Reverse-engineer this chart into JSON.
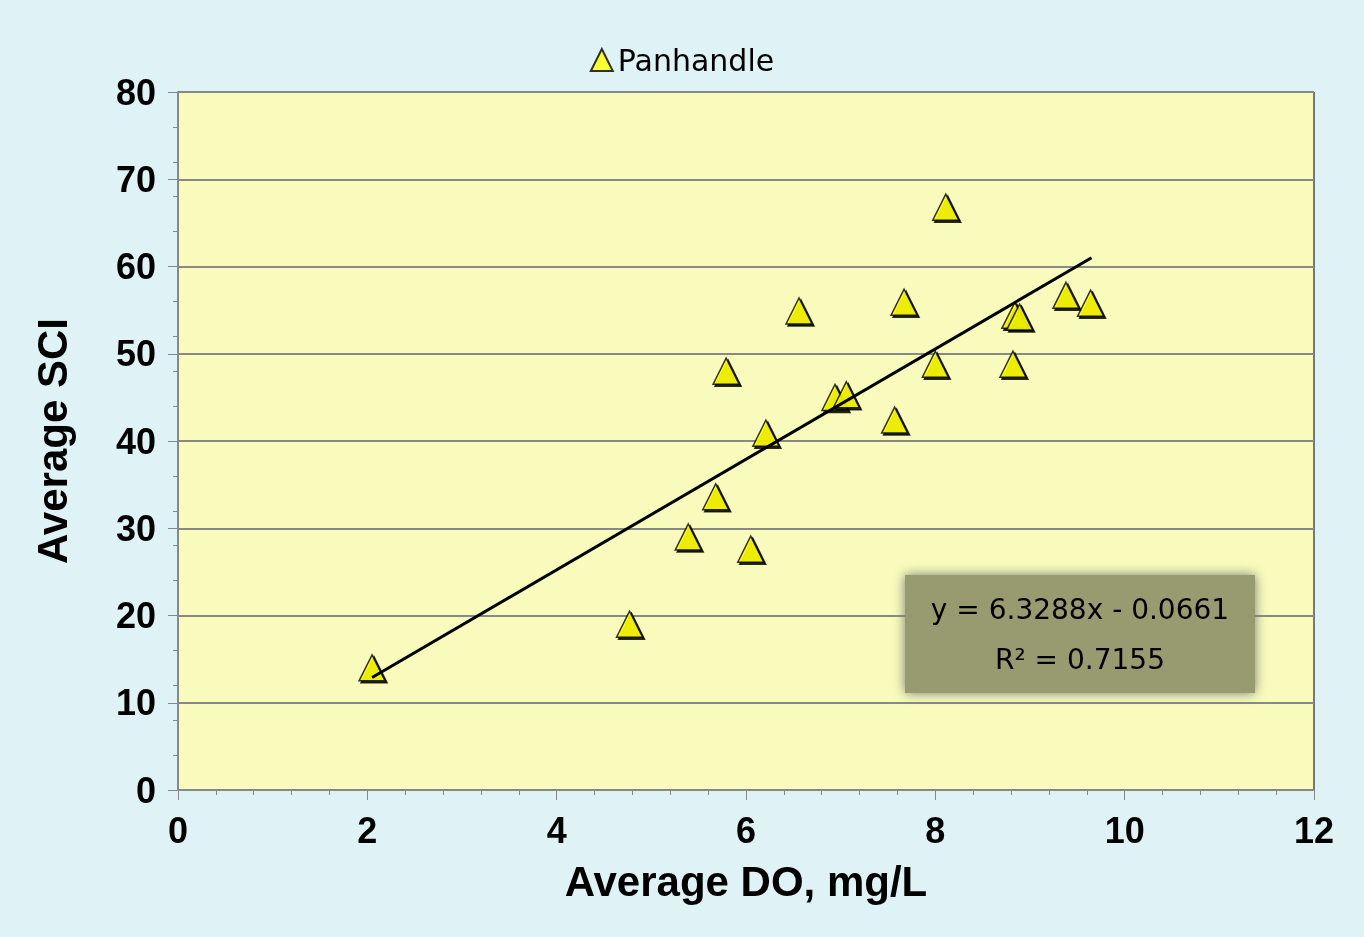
{
  "chart_data": {
    "type": "scatter",
    "xlabel": "Average DO, mg/L",
    "ylabel": "Average SCI",
    "xlim": [
      0,
      12
    ],
    "xticks": [
      0,
      2,
      4,
      6,
      8,
      10,
      12
    ],
    "ylim": [
      0,
      80
    ],
    "yticks": [
      0,
      10,
      20,
      30,
      40,
      50,
      60,
      70,
      80
    ],
    "grid": "y",
    "legend": "top",
    "marker": "triangle",
    "annotations": [
      "y = 6.3288x - 0.0661",
      "R² = 0.7155"
    ],
    "series": [
      {
        "name": "Panhandle",
        "color": "#ffff00",
        "x": [
          2.05,
          4.77,
          5.39,
          5.68,
          6.05,
          5.79,
          6.21,
          6.56,
          6.94,
          7.06,
          7.57,
          7.67,
          8.11,
          8.0,
          8.82,
          8.84,
          8.89,
          9.38,
          9.64
        ],
        "values": [
          14,
          19,
          29,
          33.6,
          27.6,
          48,
          40.9,
          54.9,
          45,
          45.3,
          42.4,
          55.9,
          66.8,
          48.8,
          48.8,
          54.4,
          54.2,
          56.7,
          55.8
        ]
      },
      {
        "type": "line",
        "color": "#000000",
        "marker": "none",
        "x": [
          2.05,
          9.65
        ],
        "values": [
          12.9,
          61.0
        ]
      }
    ]
  }
}
